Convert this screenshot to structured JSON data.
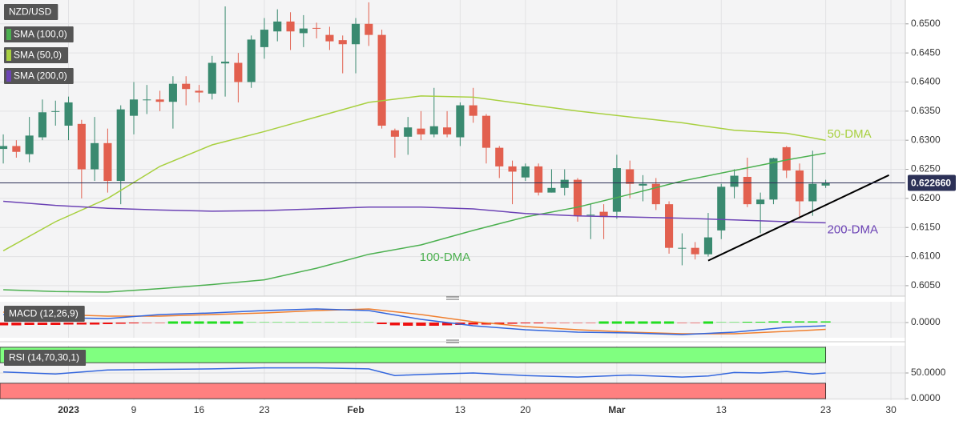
{
  "chart_data": [
    {
      "type": "candlestick",
      "title": "NZD/USD",
      "xlim": [
        -0.25,
        69.1
      ],
      "ylim": [
        0.6032,
        0.6541
      ],
      "xticks": [
        {
          "value": 5,
          "label": "2023"
        },
        {
          "value": 10,
          "label": "9"
        },
        {
          "value": 15,
          "label": "16"
        },
        {
          "value": 20,
          "label": "23"
        },
        {
          "value": 27,
          "label": "Feb"
        },
        {
          "value": 35,
          "label": "13"
        },
        {
          "value": 40,
          "label": "20"
        },
        {
          "value": 47,
          "label": "Mar"
        },
        {
          "value": 55,
          "label": "13"
        },
        {
          "value": 63,
          "label": "23"
        },
        {
          "value": 68,
          "label": "30"
        }
      ],
      "yticks": [
        {
          "value": 0.605,
          "label": "0.6050"
        },
        {
          "value": 0.61,
          "label": "0.6100"
        },
        {
          "value": 0.615,
          "label": "0.6150"
        },
        {
          "value": 0.62,
          "label": "0.6200"
        },
        {
          "value": 0.625,
          "label": "0.6250"
        },
        {
          "value": 0.63,
          "label": "0.6300"
        },
        {
          "value": 0.635,
          "label": "0.6350"
        },
        {
          "value": 0.64,
          "label": "0.6400"
        },
        {
          "value": 0.645,
          "label": "0.6450"
        },
        {
          "value": 0.65,
          "label": "0.6500"
        }
      ],
      "grid": true,
      "up_color": "#3a8a70",
      "down_color": "#e2604f",
      "x": [
        0,
        1,
        2,
        3,
        4,
        5,
        6,
        7,
        8,
        9,
        10,
        11,
        12,
        13,
        14,
        15,
        16,
        17,
        18,
        19,
        20,
        21,
        22,
        23,
        24,
        25,
        26,
        27,
        28,
        29,
        30,
        31,
        32,
        33,
        34,
        35,
        36,
        37,
        38,
        39,
        40,
        41,
        42,
        43,
        44,
        45,
        46,
        47,
        48,
        49,
        50,
        51,
        52,
        53,
        54,
        55,
        56,
        57,
        58,
        59,
        60,
        61,
        62,
        63
      ],
      "open": [
        0.6285,
        0.629,
        0.6276,
        0.6305,
        0.6349,
        0.6325,
        0.6328,
        0.625,
        0.6295,
        0.623,
        0.6342,
        0.637,
        0.637,
        0.6366,
        0.6397,
        0.6385,
        0.638,
        0.6432,
        0.6433,
        0.64,
        0.646,
        0.6487,
        0.6504,
        0.6484,
        0.6493,
        0.6481,
        0.6472,
        0.6465,
        0.65,
        0.6481,
        0.6317,
        0.6306,
        0.632,
        0.631,
        0.6322,
        0.6305,
        0.636,
        0.6342,
        0.6287,
        0.6255,
        0.6236,
        0.6255,
        0.621,
        0.6218,
        0.6232,
        0.6172,
        0.6177,
        0.6177,
        0.625,
        0.6222,
        0.6225,
        0.619,
        0.6115,
        0.6115,
        0.6104,
        0.6145,
        0.622,
        0.6237,
        0.619,
        0.6198,
        0.6288,
        0.6248,
        0.6195,
        0.6222
      ],
      "high": [
        0.631,
        0.63,
        0.634,
        0.637,
        0.6368,
        0.6375,
        0.6335,
        0.634,
        0.632,
        0.636,
        0.64,
        0.6395,
        0.6385,
        0.641,
        0.641,
        0.6395,
        0.6445,
        0.653,
        0.645,
        0.648,
        0.651,
        0.6525,
        0.652,
        0.6515,
        0.6502,
        0.6495,
        0.648,
        0.651,
        0.6537,
        0.649,
        0.632,
        0.634,
        0.635,
        0.639,
        0.635,
        0.6365,
        0.639,
        0.6345,
        0.629,
        0.6265,
        0.626,
        0.626,
        0.625,
        0.625,
        0.6235,
        0.619,
        0.619,
        0.6275,
        0.6265,
        0.624,
        0.6235,
        0.6195,
        0.614,
        0.6125,
        0.6175,
        0.6225,
        0.625,
        0.627,
        0.621,
        0.627,
        0.629,
        0.626,
        0.6282,
        0.6232
      ],
      "low": [
        0.626,
        0.627,
        0.6262,
        0.63,
        0.6325,
        0.63,
        0.62,
        0.623,
        0.621,
        0.619,
        0.631,
        0.6345,
        0.635,
        0.632,
        0.636,
        0.6365,
        0.637,
        0.6375,
        0.6365,
        0.639,
        0.644,
        0.647,
        0.6455,
        0.646,
        0.6475,
        0.6455,
        0.6415,
        0.6415,
        0.6462,
        0.632,
        0.627,
        0.6275,
        0.63,
        0.6305,
        0.6305,
        0.629,
        0.633,
        0.626,
        0.6235,
        0.619,
        0.623,
        0.6205,
        0.621,
        0.6205,
        0.616,
        0.613,
        0.613,
        0.6165,
        0.62,
        0.6195,
        0.618,
        0.6105,
        0.6085,
        0.6095,
        0.61,
        0.613,
        0.62,
        0.6185,
        0.614,
        0.619,
        0.6235,
        0.6165,
        0.617,
        0.6218
      ],
      "close": [
        0.629,
        0.628,
        0.6308,
        0.6348,
        0.635,
        0.6365,
        0.625,
        0.6295,
        0.623,
        0.6353,
        0.637,
        0.637,
        0.6366,
        0.6397,
        0.6388,
        0.6382,
        0.6433,
        0.6435,
        0.64,
        0.6473,
        0.649,
        0.6504,
        0.6487,
        0.6492,
        0.6492,
        0.647,
        0.6465,
        0.65,
        0.6481,
        0.6325,
        0.6306,
        0.6322,
        0.631,
        0.6324,
        0.631,
        0.636,
        0.6342,
        0.6287,
        0.6255,
        0.6246,
        0.6255,
        0.621,
        0.6218,
        0.6232,
        0.617,
        0.6172,
        0.6168,
        0.6252,
        0.6225,
        0.6225,
        0.619,
        0.6115,
        0.6115,
        0.6104,
        0.6133,
        0.622,
        0.6239,
        0.619,
        0.6198,
        0.6269,
        0.6248,
        0.6195,
        0.6225,
        0.6227
      ],
      "series": [
        {
          "name": "SMA (100,0)",
          "label": "100-DMA",
          "color": "#4cb050",
          "x": [
            0,
            4,
            8,
            12,
            16,
            20,
            24,
            28,
            32,
            36,
            40,
            44,
            48,
            52,
            56,
            60,
            63
          ],
          "values": [
            0.6043,
            0.604,
            0.6039,
            0.6045,
            0.6052,
            0.606,
            0.608,
            0.6104,
            0.612,
            0.6145,
            0.6168,
            0.6185,
            0.6207,
            0.623,
            0.6248,
            0.6266,
            0.6278
          ]
        },
        {
          "name": "SMA (50,0)",
          "label": "50-DMA",
          "color": "#a8d040",
          "x": [
            0,
            4,
            8,
            12,
            16,
            20,
            24,
            28,
            32,
            36,
            40,
            44,
            48,
            52,
            56,
            60,
            63
          ],
          "values": [
            0.611,
            0.616,
            0.62,
            0.6255,
            0.6292,
            0.6315,
            0.634,
            0.6365,
            0.6376,
            0.6374,
            0.6362,
            0.635,
            0.634,
            0.633,
            0.6317,
            0.6312,
            0.63
          ]
        },
        {
          "name": "SMA (200,0)",
          "label": "200-DMA",
          "color": "#6c43b5",
          "x": [
            0,
            4,
            8,
            12,
            16,
            20,
            24,
            28,
            32,
            36,
            40,
            44,
            48,
            52,
            56,
            60,
            63
          ],
          "values": [
            0.6195,
            0.6188,
            0.6183,
            0.618,
            0.6178,
            0.6179,
            0.6182,
            0.6185,
            0.6185,
            0.6182,
            0.6174,
            0.617,
            0.6168,
            0.6166,
            0.6163,
            0.616,
            0.6158
          ]
        }
      ],
      "trendline": {
        "color": "#000000",
        "x": [
          54,
          67.85
        ],
        "values": [
          0.6093,
          0.624
        ]
      },
      "last_price": {
        "value": 0.62266,
        "label": "0.622660",
        "color": "#2c3157"
      }
    },
    {
      "type": "macd",
      "title": "MACD (12,26,9)",
      "ylim": [
        -0.0038,
        0.0052
      ],
      "yticks": [
        {
          "value": 0,
          "label": "0.0000"
        }
      ],
      "up_color": "#22dd22",
      "down_color": "#ee1111",
      "hist": [
        -0.0007,
        -0.0007,
        -0.0006,
        -0.0006,
        -0.0006,
        -0.0005,
        -0.0005,
        -0.0005,
        -0.0004,
        -0.0003,
        -0.0002,
        -0.0001,
        -0.0001,
        0,
        0,
        0,
        0,
        0,
        0,
        0.0001,
        0.0001,
        0.0001,
        0.0001,
        0.0001,
        0.0001,
        0.0001,
        0.0001,
        0.0001,
        0.0001,
        -0.0004,
        -0.0007,
        -0.0008,
        -0.0008,
        -0.0008,
        -0.0007,
        -0.0006,
        -0.0005,
        -0.0005,
        -0.0004,
        -0.0003,
        -0.0002,
        -0.0002,
        -0.0001,
        -0.0001,
        -0.0001,
        -0.0001,
        0,
        0,
        0,
        0,
        0,
        0,
        -0.0001,
        -0.0001,
        0,
        0.0001,
        0.0001,
        0.0002,
        0.0002,
        0.0003,
        0.0003,
        0.0003,
        0.0003,
        0.0003
      ],
      "series": [
        {
          "color": "#f08030",
          "x": [
            0,
            4,
            8,
            12,
            16,
            20,
            24,
            28,
            32,
            36,
            40,
            44,
            48,
            52,
            56,
            60,
            63
          ],
          "values": [
            0.0026,
            0.002,
            0.0016,
            0.0016,
            0.002,
            0.0024,
            0.003,
            0.0034,
            0.002,
            0.0002,
            -0.001,
            -0.0018,
            -0.0024,
            -0.0028,
            -0.0028,
            -0.0022,
            -0.0017
          ]
        },
        {
          "color": "#3366dd",
          "x": [
            0,
            4,
            8,
            12,
            16,
            20,
            24,
            28,
            32,
            36,
            40,
            44,
            48,
            52,
            56,
            60,
            63
          ],
          "values": [
            0.002,
            0.0012,
            0.001,
            0.002,
            0.0024,
            0.003,
            0.0034,
            0.003,
            0.0008,
            -0.0008,
            -0.0018,
            -0.0024,
            -0.0026,
            -0.003,
            -0.0024,
            -0.0012,
            -0.0008
          ]
        }
      ]
    },
    {
      "type": "rsi",
      "title": "RSI (14,70,30,1)",
      "ylim": [
        -3,
        103
      ],
      "yticks": [
        {
          "value": 50,
          "label": "50.0000"
        },
        {
          "value": 0,
          "label": "0.0000"
        }
      ],
      "bands": [
        {
          "from": 70,
          "to": 100,
          "color": "#80ff80"
        },
        {
          "from": 0,
          "to": 30,
          "color": "#ff8080"
        }
      ],
      "series": [
        {
          "color": "#3366dd",
          "x": [
            0,
            4,
            8,
            12,
            16,
            20,
            24,
            28,
            30,
            32,
            36,
            40,
            44,
            48,
            52,
            54,
            56,
            58,
            60,
            62,
            63
          ],
          "values": [
            52,
            48,
            56,
            57,
            58,
            60,
            60,
            58,
            45,
            47,
            50,
            45,
            42,
            46,
            42,
            44,
            51,
            50,
            53,
            48,
            50
          ]
        }
      ]
    }
  ]
}
